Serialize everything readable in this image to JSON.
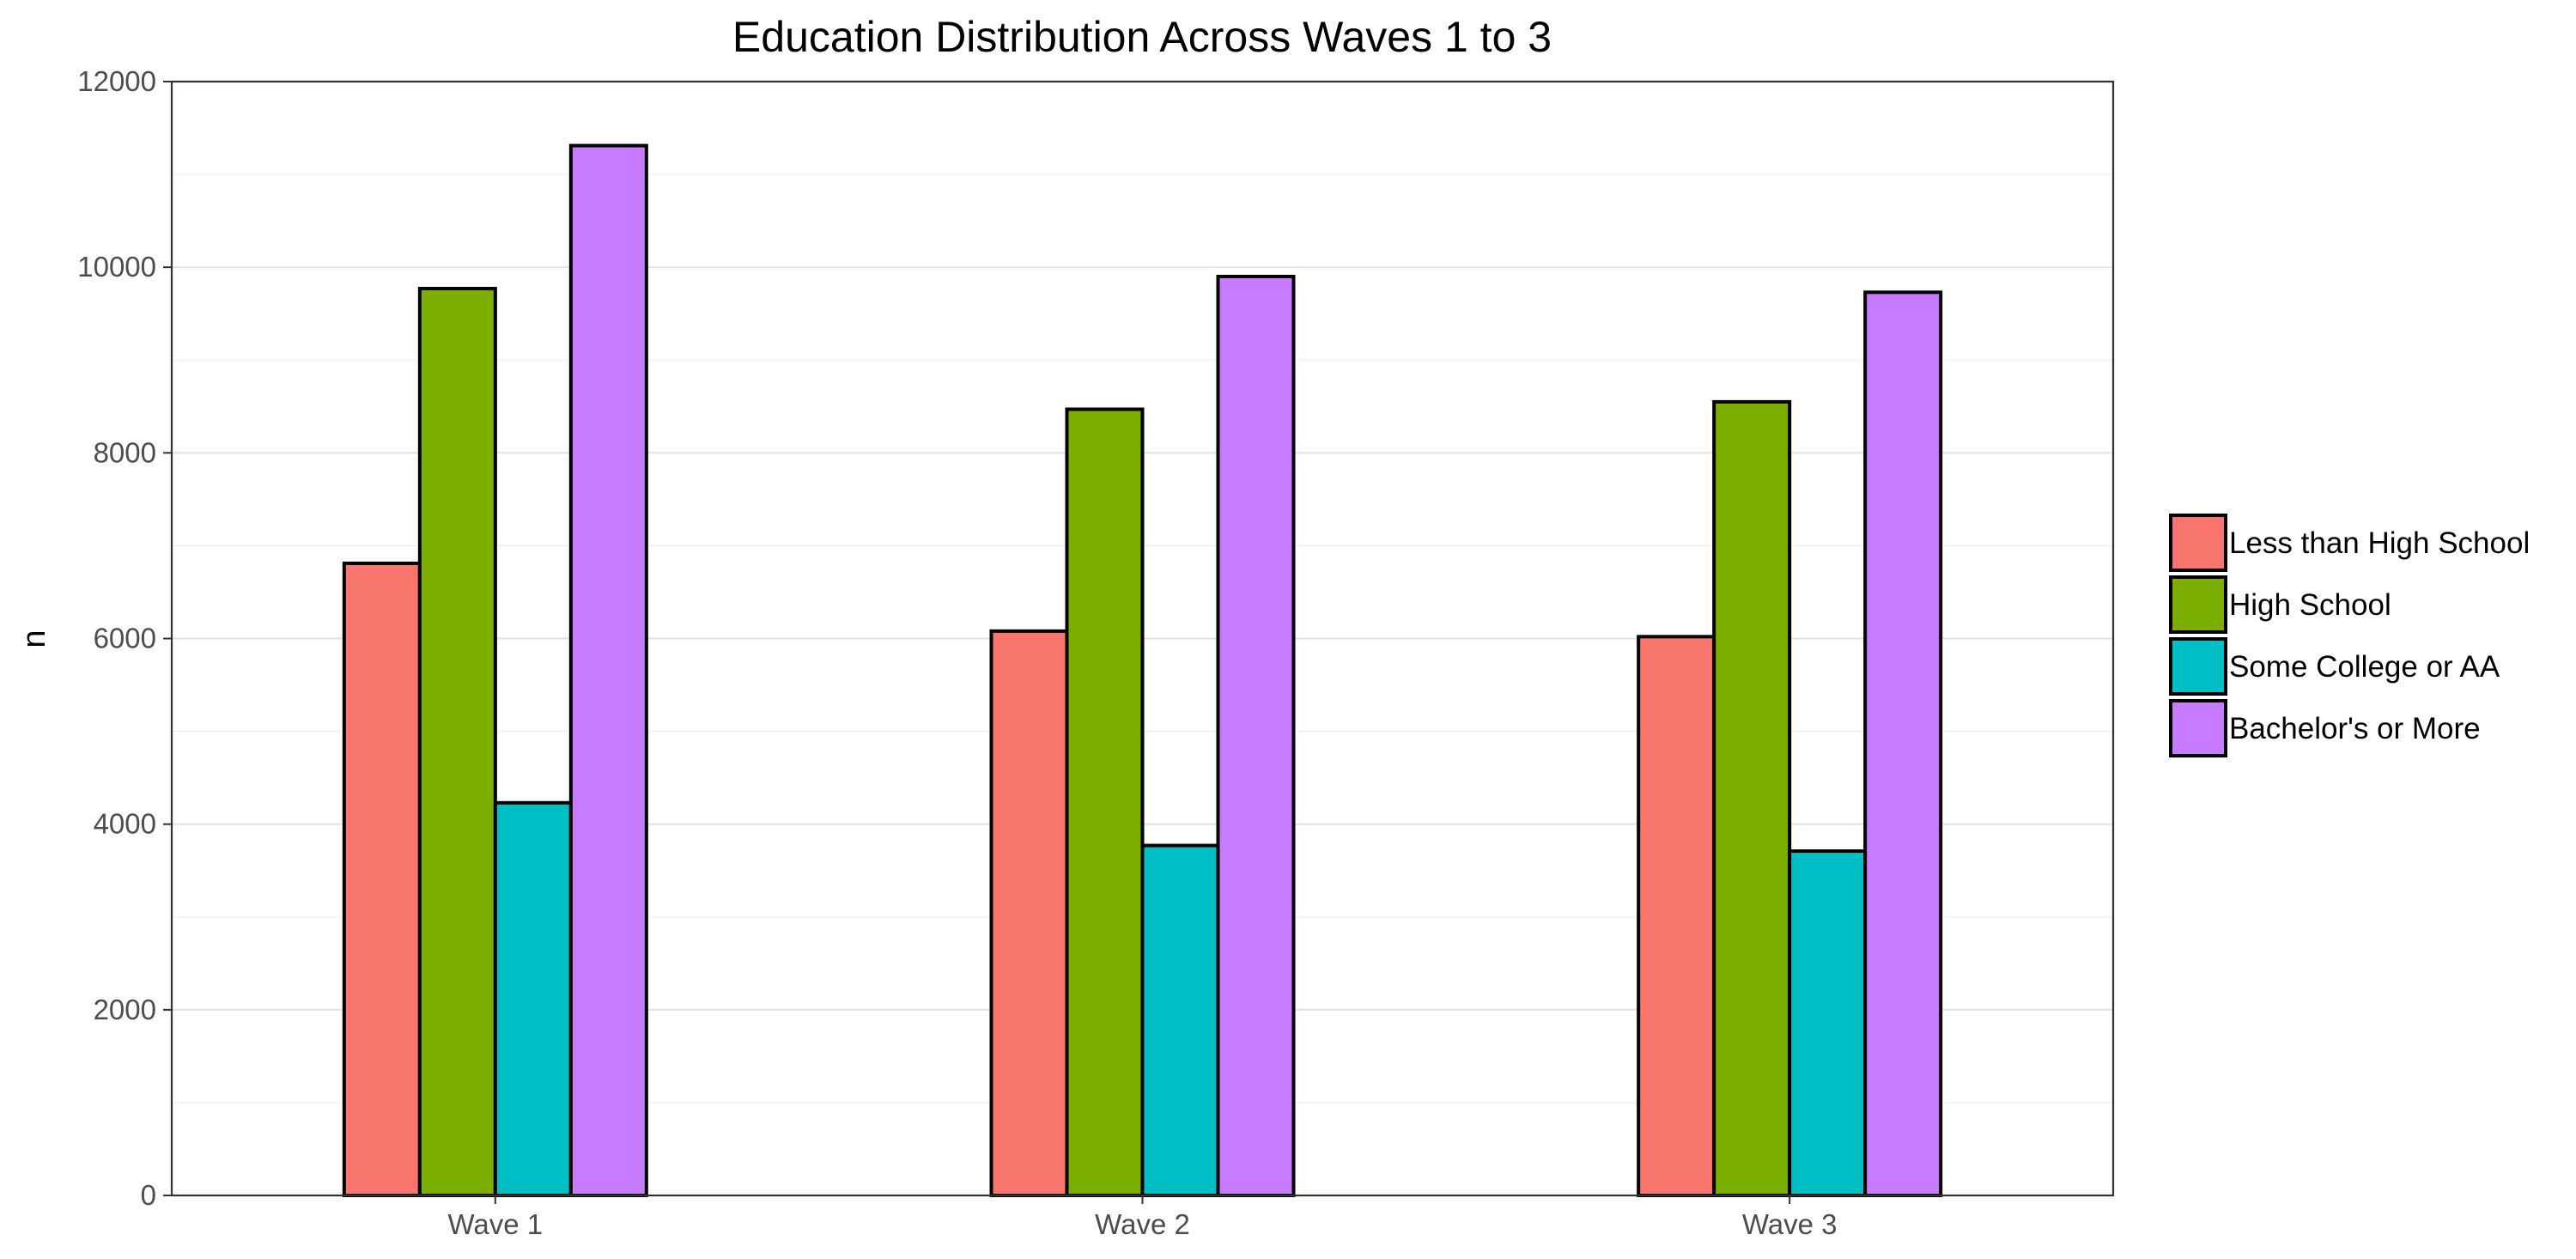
{
  "chart_data": {
    "type": "bar",
    "title": "Education Distribution Across Waves 1 to 3",
    "xlabel": "",
    "ylabel": "n",
    "categories": [
      "Wave 1",
      "Wave 2",
      "Wave 3"
    ],
    "ylim": [
      0,
      12000
    ],
    "yticks": [
      0,
      2000,
      4000,
      6000,
      8000,
      10000,
      12000
    ],
    "grid": true,
    "legend": "right",
    "series": [
      {
        "name": "Less than High School",
        "color": "#F8766D",
        "values": [
          6810,
          6080,
          6020
        ]
      },
      {
        "name": "High School",
        "color": "#7CAE00",
        "values": [
          9770,
          8470,
          8550
        ]
      },
      {
        "name": "Some College or AA",
        "color": "#00BFC4",
        "values": [
          4230,
          3770,
          3710
        ]
      },
      {
        "name": "Bachelor's or More",
        "color": "#C77CFF",
        "values": [
          11310,
          9900,
          9730
        ]
      }
    ]
  }
}
